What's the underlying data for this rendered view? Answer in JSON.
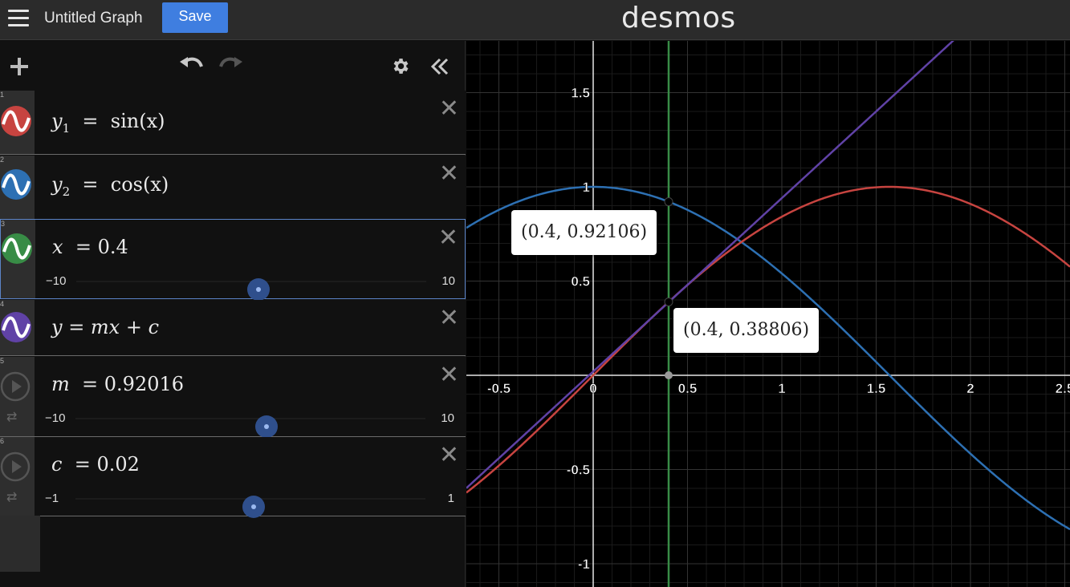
{
  "topbar": {
    "title": "Untitled Graph",
    "save_label": "Save",
    "brand": "desmos"
  },
  "toolbar": {
    "icons": [
      "add-icon",
      "undo-icon",
      "redo-icon",
      "gear-icon",
      "collapse-icon"
    ]
  },
  "expressions": [
    {
      "num": "1",
      "var": "y",
      "sub": "1",
      "rhs": "sin(x)",
      "color": "#c74440",
      "icon": "curve-icon"
    },
    {
      "num": "2",
      "var": "y",
      "sub": "2",
      "rhs": "cos(x)",
      "color": "#2d70b3",
      "icon": "curve-icon"
    },
    {
      "num": "3",
      "lhs": "x",
      "rhs": "0.4",
      "color": "#388c46",
      "icon": "curve-icon",
      "slider": {
        "min": "−10",
        "max": "10",
        "value": 0.4,
        "lo": -10,
        "hi": 10
      }
    },
    {
      "num": "4",
      "text": "y = mx + c",
      "color": "#6042a6",
      "icon": "curve-icon"
    },
    {
      "num": "5",
      "lhs": "m",
      "rhs": "0.92016",
      "icon": "play-icon",
      "slider": {
        "min": "−10",
        "max": "10",
        "value": 0.92016,
        "lo": -10,
        "hi": 10
      }
    },
    {
      "num": "6",
      "lhs": "c",
      "rhs": "0.02",
      "icon": "play-icon",
      "slider": {
        "min": "−1",
        "max": "1",
        "value": 0.02,
        "lo": -1,
        "hi": 1
      }
    }
  ],
  "graph": {
    "x_ticks": [
      "-0.5",
      "0",
      "0.5",
      "1",
      "1.5",
      "2",
      "2.5"
    ],
    "y_ticks": [
      "1.5",
      "1",
      "0.5",
      "-0.5",
      "-1"
    ],
    "point_labels": [
      "(0.4, 0.92106)",
      "(0.4, 0.38806)"
    ],
    "colors": {
      "sin": "#c74440",
      "cos": "#2d70b3",
      "x": "#388c46",
      "line": "#6042a6"
    }
  }
}
